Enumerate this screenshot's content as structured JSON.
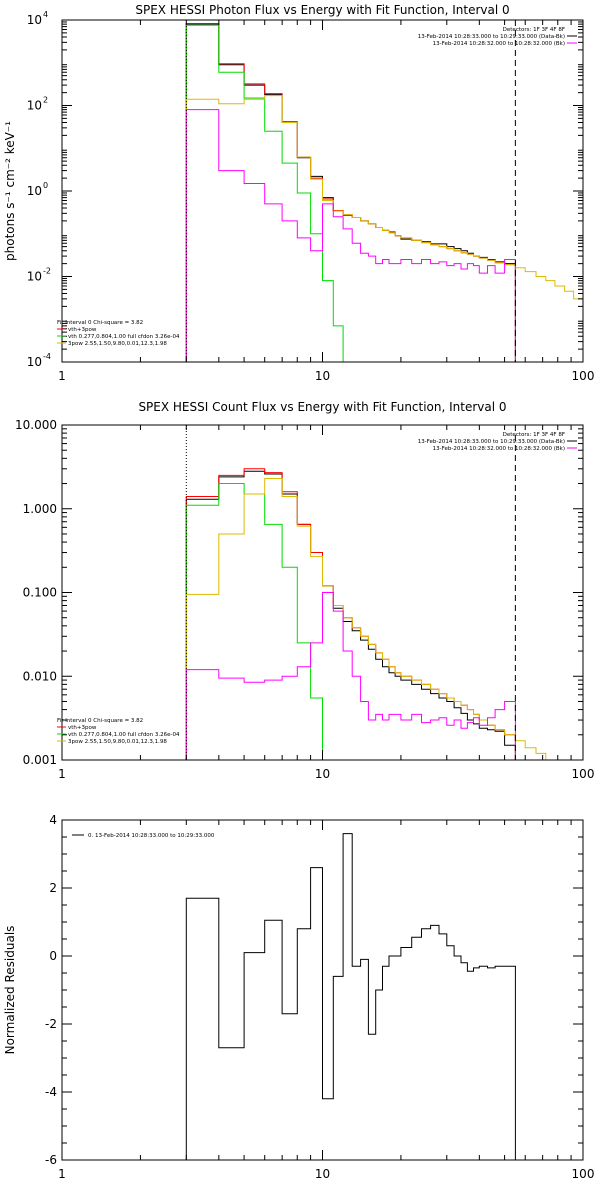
{
  "chart_data": [
    {
      "type": "line",
      "title": "SPEX HESSI Photon Flux vs Energy with Fit Function, Interval 0",
      "ylabel": "photons s⁻¹ cm⁻² keV⁻¹",
      "xlabel": "",
      "xscale": "log",
      "yscale": "log",
      "xlim": [
        1,
        100
      ],
      "ylim": [
        0.0001,
        10000
      ],
      "xticks": [
        "1",
        "10",
        "100"
      ],
      "yticks": [
        {
          "base": "10",
          "exp": "-4",
          "value": 0.0001
        },
        {
          "base": "10",
          "exp": "-2",
          "value": 0.01
        },
        {
          "base": "10",
          "exp": "0",
          "value": 1
        },
        {
          "base": "10",
          "exp": "2",
          "value": 100
        },
        {
          "base": "10",
          "exp": "4",
          "value": 10000
        }
      ],
      "header": [
        "Detectors: 1F 3F 4F 8F",
        "13-Feb-2014 10:28:33.000 to 10:29:33.000 (Data-Bk)",
        "13-Feb-2014 10:28:32.000 to 10:28:32.000 (Bk)"
      ],
      "header_colors": [
        "",
        "#000000",
        "#ff00ff"
      ],
      "fit_text": [
        "Fit Interval 0   Chi-square = 3.82",
        "vth+3pow",
        "vth 0.277,0.804,1.00  full cfdon 3.26e-04",
        "3pow 2.55,1.50,9.80,0.01,12.3,1.98"
      ],
      "fit_colors": [
        "",
        "#ff0000",
        "#00dd00",
        "#ddbb00"
      ],
      "vlines": [
        {
          "x": 3.0,
          "style": "dotted"
        },
        {
          "x": 55.0,
          "style": "dashed"
        }
      ],
      "series": [
        {
          "name": "Data-Bk",
          "color": "#000000",
          "edges": [
            3,
            4,
            5,
            6,
            7,
            8,
            9,
            10,
            11,
            12,
            13,
            14,
            15,
            16,
            17,
            18,
            19,
            20,
            22,
            24,
            26,
            28,
            30,
            32,
            34,
            36,
            38,
            40,
            43,
            46,
            50,
            55
          ],
          "values": [
            8000,
            900,
            300,
            180,
            40,
            6,
            2.2,
            0.7,
            0.34,
            0.27,
            0.24,
            0.2,
            0.17,
            0.14,
            0.12,
            0.11,
            0.09,
            0.075,
            0.07,
            0.065,
            0.058,
            0.058,
            0.05,
            0.045,
            0.04,
            0.035,
            0.03,
            0.028,
            0.025,
            0.022,
            0.02
          ]
        },
        {
          "name": "vth+3pow",
          "color": "#ff0000",
          "edges": [
            3,
            4,
            5,
            6,
            7,
            8,
            9,
            10,
            11,
            12,
            13,
            14,
            15,
            16,
            17,
            18,
            19,
            20,
            22,
            24,
            26,
            28,
            30,
            32,
            34,
            36,
            38,
            40,
            43,
            46,
            50,
            55
          ],
          "values": [
            8300,
            950,
            320,
            190,
            42,
            6.2,
            2.0,
            0.65,
            0.35,
            0.28,
            0.24,
            0.2,
            0.17,
            0.14,
            0.12,
            0.105,
            0.09,
            0.08,
            0.07,
            0.062,
            0.055,
            0.05,
            0.045,
            0.04,
            0.036,
            0.033,
            0.03,
            0.027,
            0.024,
            0.021,
            0.019
          ]
        },
        {
          "name": "vth",
          "color": "#00dd00",
          "edges": [
            3,
            4,
            5,
            6,
            7,
            8,
            9,
            10,
            11,
            12,
            13
          ],
          "values": [
            7500,
            600,
            150,
            25,
            4.5,
            0.9,
            0.1,
            0.008,
            0.0007,
            0.0001
          ]
        },
        {
          "name": "3pow",
          "color": "#ddbb00",
          "edges": [
            3,
            4,
            5,
            6,
            7,
            8,
            9,
            10,
            11,
            12,
            13,
            14,
            15,
            16,
            17,
            18,
            19,
            20,
            22,
            24,
            26,
            28,
            30,
            32,
            34,
            36,
            38,
            40,
            43,
            46,
            50,
            55,
            60,
            66,
            72,
            78,
            85,
            92,
            100
          ],
          "values": [
            140,
            110,
            140,
            170,
            40,
            6.2,
            1.9,
            0.6,
            0.34,
            0.28,
            0.24,
            0.2,
            0.17,
            0.14,
            0.12,
            0.105,
            0.09,
            0.08,
            0.07,
            0.062,
            0.055,
            0.05,
            0.045,
            0.04,
            0.036,
            0.033,
            0.03,
            0.027,
            0.024,
            0.021,
            0.019,
            0.016,
            0.013,
            0.01,
            0.008,
            0.006,
            0.0045,
            0.003
          ]
        },
        {
          "name": "Bk",
          "color": "#ff00ff",
          "edges": [
            3,
            4,
            5,
            6,
            7,
            8,
            9,
            10,
            11,
            12,
            13,
            14,
            15,
            16,
            17,
            18,
            20,
            22,
            24,
            26,
            28,
            30,
            32,
            34,
            36,
            38,
            40,
            43,
            46,
            50,
            55
          ],
          "values": [
            80,
            3,
            1.5,
            0.5,
            0.2,
            0.08,
            0.04,
            0.5,
            0.25,
            0.13,
            0.06,
            0.035,
            0.03,
            0.02,
            0.025,
            0.02,
            0.025,
            0.02,
            0.025,
            0.02,
            0.022,
            0.018,
            0.02,
            0.015,
            0.02,
            0.018,
            0.012,
            0.018,
            0.012,
            0.025
          ]
        }
      ]
    },
    {
      "type": "line",
      "title": "SPEX HESSI Count Flux vs Energy with Fit Function, Interval 0",
      "xlabel": "",
      "ylabel": "",
      "xscale": "log",
      "yscale": "log",
      "xlim": [
        1,
        100
      ],
      "ylim": [
        0.001,
        10
      ],
      "xticks": [
        "1",
        "10",
        "100"
      ],
      "yticks": [
        {
          "label": "0.001",
          "value": 0.001
        },
        {
          "label": "0.010",
          "value": 0.01
        },
        {
          "label": "0.100",
          "value": 0.1
        },
        {
          "label": "1.000",
          "value": 1
        },
        {
          "label": "10.000",
          "value": 10
        }
      ],
      "header": [
        "Detectors: 1F 3F 4F 8F",
        "13-Feb-2014 10:28:33.000 to 10:29:33.000 (Data-Bk)",
        "13-Feb-2014 10:28:32.000 to 10:28:32.000 (Bk)"
      ],
      "header_colors": [
        "",
        "#000000",
        "#ff00ff"
      ],
      "fit_text": [
        "Fit Interval 0   Chi-square = 3.82",
        "vth+3pow",
        "vth 0.277,0.804,1.00  full cfdon 3.26e-04",
        "3pow 2.55,1.50,9.80,0.01,12.3,1.98"
      ],
      "fit_colors": [
        "",
        "#ff0000",
        "#00dd00",
        "#ddbb00"
      ],
      "vlines": [
        {
          "x": 3.0,
          "style": "dotted"
        },
        {
          "x": 55.0,
          "style": "dashed"
        }
      ],
      "series": [
        {
          "name": "Data-Bk",
          "color": "#000000",
          "edges": [
            3,
            4,
            5,
            6,
            7,
            8,
            9,
            10,
            11,
            12,
            13,
            14,
            15,
            16,
            17,
            18,
            19,
            20,
            22,
            24,
            26,
            28,
            30,
            32,
            34,
            36,
            38,
            40,
            43,
            46,
            50,
            55
          ],
          "values": [
            1.3,
            2.4,
            2.8,
            2.6,
            1.5,
            0.65,
            0.3,
            0.12,
            0.065,
            0.045,
            0.035,
            0.027,
            0.021,
            0.016,
            0.013,
            0.011,
            0.01,
            0.009,
            0.008,
            0.007,
            0.0062,
            0.0055,
            0.005,
            0.0042,
            0.0036,
            0.003,
            0.0027,
            0.0024,
            0.0023,
            0.0022,
            0.0015
          ]
        },
        {
          "name": "vth+3pow",
          "color": "#ff0000",
          "edges": [
            3,
            4,
            5,
            6,
            7,
            8,
            9,
            10,
            11,
            12,
            13,
            14,
            15,
            16,
            17,
            18,
            19,
            20,
            22,
            24,
            26,
            28,
            30,
            32,
            34,
            36,
            38,
            40,
            43,
            46,
            50,
            55
          ],
          "values": [
            1.4,
            2.5,
            3.0,
            2.7,
            1.6,
            0.65,
            0.3,
            0.12,
            0.07,
            0.05,
            0.038,
            0.03,
            0.024,
            0.019,
            0.016,
            0.013,
            0.011,
            0.01,
            0.009,
            0.008,
            0.007,
            0.0062,
            0.0055,
            0.005,
            0.0045,
            0.004,
            0.0035,
            0.003,
            0.0026,
            0.0023,
            0.002
          ]
        },
        {
          "name": "vth",
          "color": "#00dd00",
          "edges": [
            3,
            4,
            5,
            6,
            7,
            8,
            9,
            10
          ],
          "values": [
            1.1,
            2.0,
            1.5,
            0.65,
            0.2,
            0.025,
            0.0055
          ]
        },
        {
          "name": "3pow",
          "color": "#ddbb00",
          "edges": [
            3,
            4,
            5,
            6,
            7,
            8,
            9,
            10,
            11,
            12,
            13,
            14,
            15,
            16,
            17,
            18,
            19,
            20,
            22,
            24,
            26,
            28,
            30,
            32,
            34,
            36,
            38,
            40,
            43,
            46,
            50,
            55,
            60,
            66,
            72,
            78,
            85,
            92
          ],
          "values": [
            0.095,
            0.5,
            1.5,
            2.3,
            1.4,
            0.62,
            0.27,
            0.12,
            0.07,
            0.05,
            0.038,
            0.03,
            0.024,
            0.019,
            0.016,
            0.013,
            0.011,
            0.01,
            0.009,
            0.008,
            0.007,
            0.0062,
            0.0055,
            0.005,
            0.0045,
            0.004,
            0.0035,
            0.003,
            0.0026,
            0.0023,
            0.002,
            0.0017,
            0.0014,
            0.0012,
            0.001,
            0.0009,
            0.0008
          ]
        },
        {
          "name": "Bk",
          "color": "#ff00ff",
          "edges": [
            3,
            4,
            5,
            6,
            7,
            8,
            9,
            10,
            11,
            12,
            13,
            14,
            15,
            16,
            17,
            18,
            20,
            22,
            24,
            26,
            28,
            30,
            32,
            34,
            36,
            38,
            40,
            43,
            46,
            50,
            55
          ],
          "values": [
            0.012,
            0.0095,
            0.0085,
            0.009,
            0.01,
            0.013,
            0.025,
            0.1,
            0.06,
            0.02,
            0.01,
            0.005,
            0.003,
            0.0035,
            0.003,
            0.0035,
            0.003,
            0.0035,
            0.0028,
            0.003,
            0.0032,
            0.0026,
            0.003,
            0.0024,
            0.0028,
            0.0032,
            0.0026,
            0.0032,
            0.004,
            0.005
          ]
        }
      ]
    },
    {
      "type": "line",
      "title": "",
      "xlabel": "",
      "ylabel": "Normalized Residuals",
      "xscale": "log",
      "yscale": "linear",
      "xlim": [
        1,
        100
      ],
      "ylim": [
        -6,
        4
      ],
      "xticks": [
        "1",
        "10",
        "100"
      ],
      "yticks": [
        {
          "label": "-6",
          "value": -6
        },
        {
          "label": "-4",
          "value": -4
        },
        {
          "label": "-2",
          "value": -2
        },
        {
          "label": "0",
          "value": 0
        },
        {
          "label": "2",
          "value": 2
        },
        {
          "label": "4",
          "value": 4
        }
      ],
      "legend": "0. 13-Feb-2014 10:28:33.000 to 10:29:33.000",
      "series": [
        {
          "name": "0. 13-Feb-2014 10:28:33.000 to 10:29:33.000",
          "color": "#000000",
          "edges": [
            3,
            4,
            5,
            6,
            7,
            8,
            9,
            10,
            11,
            12,
            13,
            14,
            15,
            16,
            17,
            18,
            20,
            22,
            24,
            26,
            28,
            30,
            32,
            34,
            36,
            38,
            40,
            43,
            46,
            50,
            55
          ],
          "values": [
            1.7,
            -2.7,
            0.1,
            1.05,
            -1.7,
            0.8,
            2.6,
            -4.2,
            -0.6,
            3.6,
            -0.3,
            -0.1,
            -2.3,
            -1.0,
            -0.3,
            0.0,
            0.25,
            0.55,
            0.8,
            0.9,
            0.65,
            0.3,
            0.0,
            -0.2,
            -0.45,
            -0.35,
            -0.3,
            -0.35,
            -0.3,
            -0.3
          ]
        }
      ]
    }
  ]
}
